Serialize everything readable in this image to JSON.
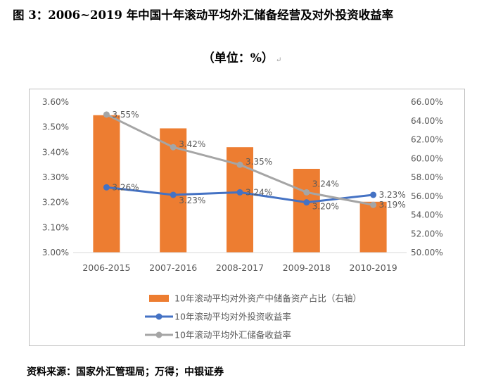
{
  "title": "图 3：2006~2019 年中国十年滚动平均外汇储备经营及对外投资收益率",
  "unit_label": "（单位：%）",
  "paragraph_mark": "↵",
  "source": "资料来源：国家外汇管理局；万得；中银证券",
  "colors": {
    "bar": "#ED7D31",
    "investment_line": "#4472C4",
    "reserve_line": "#A5A5A5",
    "axis_text": "#595959",
    "gridline": "#d9d9d9"
  },
  "chart_data": {
    "type": "bar+line",
    "categories": [
      "2006-2015",
      "2007-2016",
      "2008-2017",
      "2009-2018",
      "2010-2019"
    ],
    "left_axis": {
      "ticks": [
        "3.00%",
        "3.10%",
        "3.20%",
        "3.30%",
        "3.40%",
        "3.50%",
        "3.60%"
      ],
      "ylim": [
        3.0,
        3.6
      ]
    },
    "right_axis": {
      "ticks": [
        "50.00%",
        "52.00%",
        "54.00%",
        "56.00%",
        "58.00%",
        "60.00%",
        "62.00%",
        "64.00%",
        "66.00%"
      ],
      "ylim": [
        50,
        66
      ]
    },
    "series": [
      {
        "name": "10年滚动平均对外资产中储备资产占比（右轴）",
        "type": "bar",
        "axis": "right",
        "values": [
          64.6,
          63.2,
          61.2,
          58.9,
          55.4
        ]
      },
      {
        "name": "10年滚动平均对外投资收益率",
        "type": "line",
        "axis": "left",
        "values": [
          3.26,
          3.23,
          3.24,
          3.2,
          3.23
        ],
        "labels": [
          "3.26%",
          "3.23%",
          "3.24%",
          "3.20%",
          "3.23%"
        ]
      },
      {
        "name": "10年滚动平均外汇储备收益率",
        "type": "line",
        "axis": "left",
        "values": [
          3.55,
          3.42,
          3.35,
          3.24,
          3.19
        ],
        "labels": [
          "3.55%",
          "3.42%",
          "3.35%",
          "3.24%",
          "3.19%"
        ]
      }
    ],
    "legend_position": "bottom",
    "grid": false
  }
}
